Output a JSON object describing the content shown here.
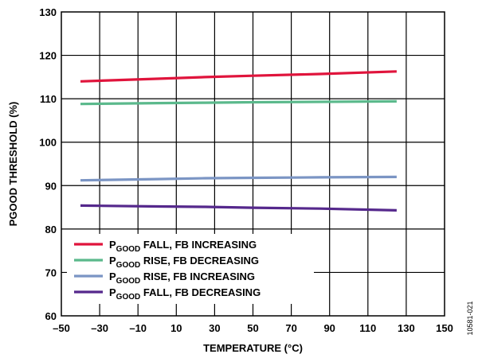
{
  "figure_id": "10581-021",
  "chart_data": {
    "type": "line",
    "title": "",
    "xlabel": "TEMPERATURE (°C)",
    "ylabel": "PGOOD THRESHOLD (%)",
    "xlim": [
      -50,
      150
    ],
    "ylim": [
      60,
      130
    ],
    "xticks": [
      -50,
      -30,
      -10,
      10,
      30,
      50,
      70,
      90,
      110,
      130,
      150
    ],
    "xtick_labels": [
      "–50",
      "–30",
      "–10",
      "10",
      "30",
      "50",
      "70",
      "90",
      "110",
      "130",
      "150"
    ],
    "yticks": [
      60,
      70,
      80,
      90,
      100,
      110,
      120,
      130
    ],
    "ytick_labels": [
      "60",
      "70",
      "80",
      "90",
      "100",
      "110",
      "120",
      "130"
    ],
    "grid": true,
    "legend_position": "bottom-left",
    "series": [
      {
        "name_main": "P",
        "name_sub": "GOOD",
        "name_rest": " FALL, FB INCREASING",
        "color": "#e0143c",
        "x": [
          -40,
          0,
          25,
          50,
          85,
          125
        ],
        "y": [
          114.0,
          114.6,
          115.0,
          115.3,
          115.7,
          116.3
        ]
      },
      {
        "name_main": "P",
        "name_sub": "GOOD",
        "name_rest": " RISE, FB DECREASING",
        "color": "#5bb98c",
        "x": [
          -40,
          0,
          25,
          50,
          85,
          125
        ],
        "y": [
          108.8,
          109.0,
          109.1,
          109.2,
          109.3,
          109.4
        ]
      },
      {
        "name_main": "P",
        "name_sub": "GOOD",
        "name_rest": " RISE, FB INCREASING",
        "color": "#7b95c4",
        "x": [
          -40,
          0,
          25,
          50,
          85,
          125
        ],
        "y": [
          91.2,
          91.5,
          91.7,
          91.8,
          91.9,
          92.0
        ]
      },
      {
        "name_main": "P",
        "name_sub": "GOOD",
        "name_rest": " FALL, FB DECREASING",
        "color": "#55288c",
        "x": [
          -40,
          0,
          25,
          50,
          85,
          125
        ],
        "y": [
          85.4,
          85.2,
          85.1,
          84.9,
          84.7,
          84.3
        ]
      }
    ]
  }
}
